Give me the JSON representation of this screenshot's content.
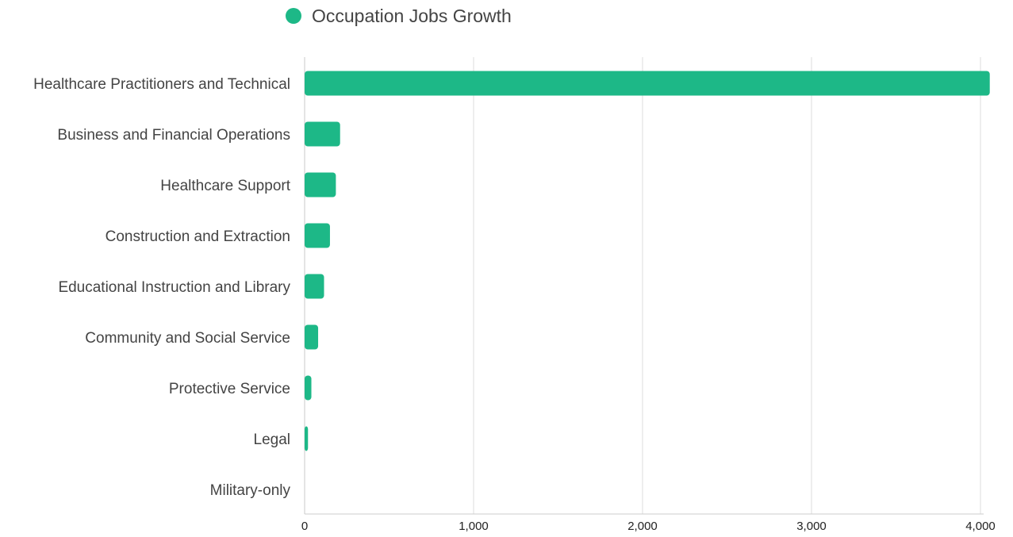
{
  "chart_data": {
    "type": "bar",
    "orientation": "horizontal",
    "categories": [
      "Healthcare Practitioners and Technical",
      "Business and Financial Operations",
      "Healthcare Support",
      "Construction and Extraction",
      "Educational Instruction and Library",
      "Community and Social Service",
      "Protective Service",
      "Legal",
      "Military-only"
    ],
    "series": [
      {
        "name": "Occupation Jobs Growth",
        "color": "#1db887",
        "values": [
          4055,
          210,
          185,
          150,
          115,
          80,
          40,
          20,
          0
        ]
      }
    ],
    "xlim": [
      0,
      4000
    ],
    "xticks": [
      0,
      1000,
      2000,
      3000,
      4000
    ],
    "xtick_labels": [
      "0",
      "1,000",
      "2,000",
      "3,000",
      "4,000"
    ],
    "grid": "vertical",
    "legend_position": "top"
  }
}
